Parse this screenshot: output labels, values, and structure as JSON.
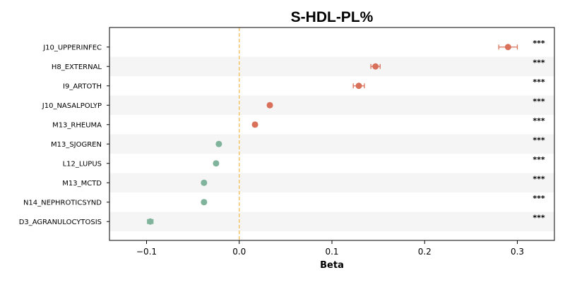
{
  "chart_data": {
    "type": "scatter",
    "title": "S-HDL-PL%",
    "xlabel": "Beta",
    "ylabel": "",
    "xlim": [
      -0.14,
      0.34
    ],
    "xticks": [
      -0.1,
      0.0,
      0.1,
      0.2,
      0.3
    ],
    "xtick_labels": [
      "−0.1",
      "0.0",
      "0.1",
      "0.2",
      "0.3"
    ],
    "reference_line": 0.0,
    "colors": {
      "positive": "#d9705a",
      "negative": "#7fb39b",
      "reference": "#f5c36e",
      "band": "#f5f5f5"
    },
    "points": [
      {
        "label": "J10_UPPERINFEC",
        "beta": 0.29,
        "ci_low": 0.28,
        "ci_high": 0.3,
        "significance": "***"
      },
      {
        "label": "H8_EXTERNAL",
        "beta": 0.147,
        "ci_low": 0.142,
        "ci_high": 0.152,
        "significance": "***"
      },
      {
        "label": "I9_ARTOTH",
        "beta": 0.129,
        "ci_low": 0.123,
        "ci_high": 0.135,
        "significance": "***"
      },
      {
        "label": "J10_NASALPOLYP",
        "beta": 0.033,
        "ci_low": 0.031,
        "ci_high": 0.035,
        "significance": "***"
      },
      {
        "label": "M13_RHEUMA",
        "beta": 0.017,
        "ci_low": 0.015,
        "ci_high": 0.019,
        "significance": "***"
      },
      {
        "label": "M13_SJOGREN",
        "beta": -0.022,
        "ci_low": -0.024,
        "ci_high": -0.02,
        "significance": "***"
      },
      {
        "label": "L12_LUPUS",
        "beta": -0.025,
        "ci_low": -0.027,
        "ci_high": -0.023,
        "significance": "***"
      },
      {
        "label": "M13_MCTD",
        "beta": -0.038,
        "ci_low": -0.04,
        "ci_high": -0.036,
        "significance": "***"
      },
      {
        "label": "N14_NEPHROTICSYND",
        "beta": -0.038,
        "ci_low": -0.04,
        "ci_high": -0.036,
        "significance": "***"
      },
      {
        "label": "D3_AGRANULOCYTOSIS",
        "beta": -0.096,
        "ci_low": -0.099,
        "ci_high": -0.093,
        "significance": "***"
      }
    ]
  }
}
